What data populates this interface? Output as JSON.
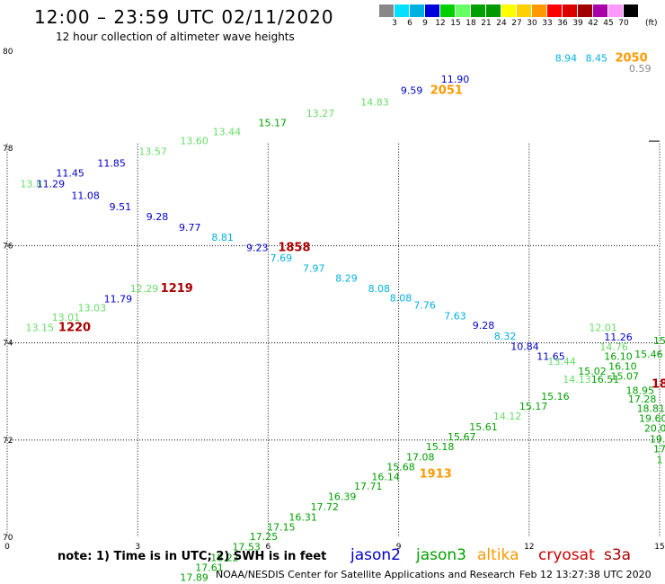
{
  "header": {
    "title": "12:00 – 23:59 UTC 02/11/2020",
    "subtitle": "12 hour collection of altimeter wave heights"
  },
  "footer": {
    "note": "note:  1) Time is in UTC;  2) SWH is in feet",
    "credit": "NOAA/NESDIS Center for Satellite Applications and Research",
    "timestamp": "Feb 12 13:27:38 UTC 2020"
  },
  "satellites": [
    {
      "name": "jason2",
      "color": "#0000cc"
    },
    {
      "name": "jason3",
      "color": "#00a000"
    },
    {
      "name": "altika",
      "color": "#ff9900"
    },
    {
      "name": "cryosat",
      "color": "#cc0000"
    },
    {
      "name": "s3a",
      "color": "#aa0000"
    }
  ],
  "color_scale": {
    "unit": "(ft)",
    "labels": [
      "3",
      "6",
      "9",
      "12",
      "15",
      "18",
      "21",
      "24",
      "27",
      "30",
      "33",
      "36",
      "39",
      "42",
      "45",
      "70"
    ],
    "colors": [
      "#888888",
      "#00e0ff",
      "#00b0e0",
      "#0000dd",
      "#00d000",
      "#66ff66",
      "#00a000",
      "#009900",
      "#ffff00",
      "#ffd000",
      "#ff9900",
      "#ff0000",
      "#dd0000",
      "#a00000",
      "#aa00aa",
      "#ff99ff",
      "#000000"
    ]
  },
  "chart_data": {
    "type": "scatter",
    "xlabel": "",
    "ylabel": "",
    "x_ticks": [
      "0",
      "3",
      "6",
      "9",
      "12",
      "15"
    ],
    "y_ticks": [
      "70",
      "72",
      "74",
      "76",
      "78",
      "80"
    ],
    "xlim": [
      0,
      15
    ],
    "ylim": [
      70,
      80
    ],
    "grid": true,
    "points": [
      {
        "text": "8.94",
        "x": 12.85,
        "y": 79.86,
        "c": "#00b0e0"
      },
      {
        "text": "8.45",
        "x": 13.55,
        "y": 79.86,
        "c": "#00b0e0"
      },
      {
        "text": "2050",
        "x": 14.35,
        "y": 79.86,
        "c": "#ff9900",
        "big": true
      },
      {
        "text": "0.59",
        "x": 14.55,
        "y": 79.65,
        "c": "#888888"
      },
      {
        "text": "11.90",
        "x": 10.3,
        "y": 79.43,
        "c": "#0000cc"
      },
      {
        "text": "9.59",
        "x": 9.3,
        "y": 79.2,
        "c": "#0000cc"
      },
      {
        "text": "2051",
        "x": 10.1,
        "y": 79.2,
        "c": "#ff9900",
        "big": true
      },
      {
        "text": "14.83",
        "x": 8.45,
        "y": 78.96,
        "c": "#66dd66"
      },
      {
        "text": "13.27",
        "x": 7.2,
        "y": 78.72,
        "c": "#66dd66"
      },
      {
        "text": "15.17",
        "x": 6.1,
        "y": 78.53,
        "c": "#00a000"
      },
      {
        "text": "13.44",
        "x": 5.05,
        "y": 78.35,
        "c": "#66dd66"
      },
      {
        "text": "13.60",
        "x": 4.3,
        "y": 78.16,
        "c": "#66dd66"
      },
      {
        "text": "13.57",
        "x": 3.35,
        "y": 77.94,
        "c": "#66dd66"
      },
      {
        "text": "11.85",
        "x": 2.4,
        "y": 77.7,
        "c": "#0000cc"
      },
      {
        "text": "11.45",
        "x": 1.45,
        "y": 77.5,
        "c": "#0000cc"
      },
      {
        "text": "13.8",
        "x": 0.55,
        "y": 77.27,
        "c": "#66dd66"
      },
      {
        "text": "11.29",
        "x": 1.0,
        "y": 77.27,
        "c": "#0000cc"
      },
      {
        "text": "11.08",
        "x": 1.8,
        "y": 77.03,
        "c": "#0000cc"
      },
      {
        "text": "9.51",
        "x": 2.6,
        "y": 76.8,
        "c": "#0000cc"
      },
      {
        "text": "9.28",
        "x": 3.45,
        "y": 76.6,
        "c": "#0000cc"
      },
      {
        "text": "9.77",
        "x": 4.2,
        "y": 76.38,
        "c": "#0000cc"
      },
      {
        "text": "8.81",
        "x": 4.95,
        "y": 76.17,
        "c": "#00b0e0"
      },
      {
        "text": "9.23",
        "x": 5.75,
        "y": 75.96,
        "c": "#0000cc"
      },
      {
        "text": "1858",
        "x": 6.6,
        "y": 75.96,
        "c": "#aa0000",
        "big": true
      },
      {
        "text": "7.69",
        "x": 6.3,
        "y": 75.75,
        "c": "#00b0e0"
      },
      {
        "text": "7.97",
        "x": 7.05,
        "y": 75.54,
        "c": "#00b0e0"
      },
      {
        "text": "8.29",
        "x": 7.8,
        "y": 75.33,
        "c": "#00b0e0"
      },
      {
        "text": "8.08",
        "x": 8.55,
        "y": 75.12,
        "c": "#00b0e0"
      },
      {
        "text": "8.08",
        "x": 9.05,
        "y": 74.93,
        "c": "#00b0e0"
      },
      {
        "text": "7.76",
        "x": 9.6,
        "y": 74.78,
        "c": "#00b0e0"
      },
      {
        "text": "7.63",
        "x": 10.3,
        "y": 74.56,
        "c": "#00b0e0"
      },
      {
        "text": "9.28",
        "x": 10.95,
        "y": 74.36,
        "c": "#0000cc"
      },
      {
        "text": "8.32",
        "x": 11.45,
        "y": 74.14,
        "c": "#00b0e0"
      },
      {
        "text": "10.84",
        "x": 11.9,
        "y": 73.93,
        "c": "#0000cc"
      },
      {
        "text": "11.65",
        "x": 12.5,
        "y": 73.72,
        "c": "#0000cc"
      },
      {
        "text": "12.29",
        "x": 3.15,
        "y": 75.12,
        "c": "#66dd66"
      },
      {
        "text": "1219",
        "x": 3.9,
        "y": 75.12,
        "c": "#aa0000",
        "big": true
      },
      {
        "text": "11.79",
        "x": 2.55,
        "y": 74.91,
        "c": "#0000cc"
      },
      {
        "text": "13.03",
        "x": 1.95,
        "y": 74.72,
        "c": "#66dd66"
      },
      {
        "text": "13.01",
        "x": 1.35,
        "y": 74.53,
        "c": "#66dd66"
      },
      {
        "text": "13.15",
        "x": 0.75,
        "y": 74.32,
        "c": "#66dd66"
      },
      {
        "text": "1220",
        "x": 1.55,
        "y": 74.32,
        "c": "#aa0000",
        "big": true
      },
      {
        "text": "12.01",
        "x": 13.7,
        "y": 74.32,
        "c": "#66dd66"
      },
      {
        "text": "11.26",
        "x": 14.05,
        "y": 74.12,
        "c": "#0000cc"
      },
      {
        "text": "14.76",
        "x": 13.95,
        "y": 73.92,
        "c": "#66dd66"
      },
      {
        "text": "15.46",
        "x": 14.75,
        "y": 73.77,
        "c": "#00a000"
      },
      {
        "text": "16.10",
        "x": 14.05,
        "y": 73.72,
        "c": "#00a000"
      },
      {
        "text": "16.10",
        "x": 14.15,
        "y": 73.52,
        "c": "#00a000"
      },
      {
        "text": "15.07",
        "x": 14.2,
        "y": 73.32,
        "c": "#00a000"
      },
      {
        "text": "15.02",
        "x": 13.45,
        "y": 73.42,
        "c": "#00a000"
      },
      {
        "text": "16.51",
        "x": 13.75,
        "y": 73.25,
        "c": "#00a000"
      },
      {
        "text": "13.44",
        "x": 12.75,
        "y": 73.62,
        "c": "#66dd66"
      },
      {
        "text": "14.13",
        "x": 13.1,
        "y": 73.25,
        "c": "#66dd66"
      },
      {
        "text": "15.16",
        "x": 12.6,
        "y": 72.9,
        "c": "#00a000"
      },
      {
        "text": "15.17",
        "x": 12.1,
        "y": 72.7,
        "c": "#00a000"
      },
      {
        "text": "14.12",
        "x": 11.5,
        "y": 72.5,
        "c": "#66dd66"
      },
      {
        "text": "15.61",
        "x": 10.95,
        "y": 72.27,
        "c": "#00a000"
      },
      {
        "text": "15.67",
        "x": 10.45,
        "y": 72.07,
        "c": "#00a000"
      },
      {
        "text": "15.18",
        "x": 9.95,
        "y": 71.87,
        "c": "#00a000"
      },
      {
        "text": "17.08",
        "x": 9.5,
        "y": 71.65,
        "c": "#00a000"
      },
      {
        "text": "15.68",
        "x": 9.05,
        "y": 71.45,
        "c": "#00a000"
      },
      {
        "text": "1913",
        "x": 9.85,
        "y": 71.3,
        "c": "#ff9900",
        "big": true
      },
      {
        "text": "16.14",
        "x": 8.7,
        "y": 71.25,
        "c": "#00a000"
      },
      {
        "text": "17.71",
        "x": 8.3,
        "y": 71.05,
        "c": "#00a000"
      },
      {
        "text": "16.39",
        "x": 7.7,
        "y": 70.84,
        "c": "#00a000"
      },
      {
        "text": "17.72",
        "x": 7.3,
        "y": 70.63,
        "c": "#00a000"
      },
      {
        "text": "16.31",
        "x": 6.8,
        "y": 70.42,
        "c": "#00a000"
      },
      {
        "text": "17.15",
        "x": 6.3,
        "y": 70.21,
        "c": "#00a000"
      },
      {
        "text": "17.25",
        "x": 5.9,
        "y": 70.02,
        "c": "#00a000"
      },
      {
        "text": "17.53",
        "x": 5.5,
        "y": 69.81,
        "c": "#00a000"
      },
      {
        "text": "18.22",
        "x": 5.0,
        "y": 69.58,
        "c": "#00a000"
      },
      {
        "text": "17.61",
        "x": 4.65,
        "y": 69.38,
        "c": "#00a000"
      },
      {
        "text": "17.89",
        "x": 4.3,
        "y": 69.18,
        "c": "#00a000"
      },
      {
        "text": "18.95",
        "x": 14.55,
        "y": 73.02,
        "c": "#00a000"
      },
      {
        "text": "17.28",
        "x": 14.6,
        "y": 72.85,
        "c": "#00a000"
      },
      {
        "text": "18.81",
        "x": 14.8,
        "y": 72.65,
        "c": "#00a000"
      },
      {
        "text": "19.60",
        "x": 14.85,
        "y": 72.45,
        "c": "#00a000"
      },
      {
        "text": "20.0",
        "x": 14.9,
        "y": 72.25,
        "c": "#00a000"
      },
      {
        "text": "19.",
        "x": 14.95,
        "y": 72.02,
        "c": "#00a000"
      },
      {
        "text": "17",
        "x": 15.0,
        "y": 71.82,
        "c": "#00a000"
      },
      {
        "text": "18",
        "x": 15.0,
        "y": 73.15,
        "c": "#aa0000",
        "big": true
      },
      {
        "text": "15",
        "x": 15.0,
        "y": 74.05,
        "c": "#00a000"
      },
      {
        "text": "1",
        "x": 15.0,
        "y": 71.6,
        "c": "#00a000"
      }
    ]
  }
}
